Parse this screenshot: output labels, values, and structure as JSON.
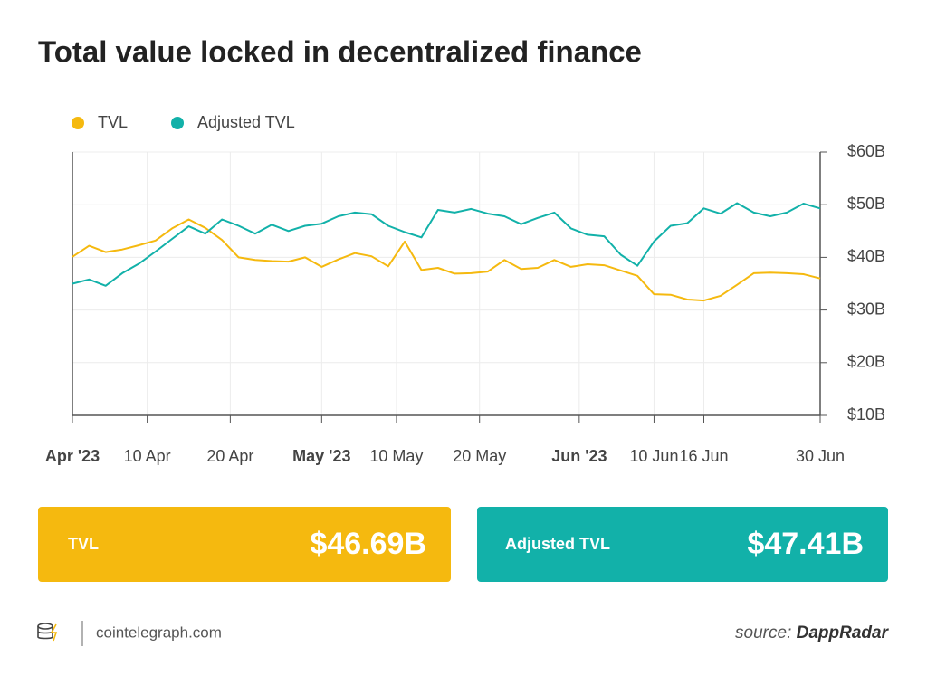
{
  "chart_data": {
    "type": "line",
    "title": "Total value locked in decentralized finance",
    "x": [
      "2023-04-01",
      "2023-04-03",
      "2023-04-05",
      "2023-04-07",
      "2023-04-09",
      "2023-04-11",
      "2023-04-13",
      "2023-04-15",
      "2023-04-17",
      "2023-04-19",
      "2023-04-21",
      "2023-04-23",
      "2023-04-25",
      "2023-04-27",
      "2023-04-29",
      "2023-05-01",
      "2023-05-03",
      "2023-05-05",
      "2023-05-07",
      "2023-05-09",
      "2023-05-11",
      "2023-05-13",
      "2023-05-15",
      "2023-05-17",
      "2023-05-19",
      "2023-05-21",
      "2023-05-23",
      "2023-05-25",
      "2023-05-27",
      "2023-05-29",
      "2023-05-31",
      "2023-06-02",
      "2023-06-04",
      "2023-06-06",
      "2023-06-08",
      "2023-06-10",
      "2023-06-12",
      "2023-06-14",
      "2023-06-16",
      "2023-06-18",
      "2023-06-20",
      "2023-06-22",
      "2023-06-24",
      "2023-06-26",
      "2023-06-28",
      "2023-06-30"
    ],
    "series": [
      {
        "name": "TVL",
        "color": "#f5b90f",
        "values": [
          40.1,
          42.2,
          41,
          41.5,
          42.3,
          43.2,
          45.5,
          47.2,
          45.6,
          43.3,
          40,
          39.5,
          39.3,
          39.2,
          40,
          38.2,
          39.6,
          40.8,
          40.2,
          38.3,
          43,
          37.6,
          38,
          36.9,
          37,
          37.3,
          39.5,
          37.8,
          38,
          39.5,
          38.2,
          38.7,
          38.5,
          37.5,
          36.5,
          33,
          32.9,
          32,
          31.8,
          32.7,
          34.8,
          37,
          37.1,
          37,
          36.8,
          36
        ]
      },
      {
        "name": "Adjusted TVL",
        "color": "#12b1a9",
        "values": [
          35,
          35.8,
          34.6,
          37,
          38.8,
          41.1,
          43.5,
          45.9,
          44.5,
          47.2,
          46,
          44.5,
          46.2,
          45,
          46,
          46.4,
          47.8,
          48.5,
          48.2,
          46,
          44.8,
          43.8,
          49,
          48.5,
          49.2,
          48.3,
          47.8,
          46.3,
          47.5,
          48.5,
          45.5,
          44.3,
          44,
          40.5,
          38.4,
          43,
          46,
          46.5,
          49.3,
          48.3,
          50.3,
          48.5,
          47.8,
          48.5,
          50.2,
          49.3
        ]
      }
    ],
    "xlim": [
      "2023-04-01",
      "2023-06-30"
    ],
    "xticks": [
      {
        "value": "2023-04-01",
        "label": "Apr '23"
      },
      {
        "value": "2023-04-10",
        "label": "10 Apr"
      },
      {
        "value": "2023-04-20",
        "label": "20 Apr"
      },
      {
        "value": "2023-05-01",
        "label": "May '23"
      },
      {
        "value": "2023-05-10",
        "label": "10 May"
      },
      {
        "value": "2023-05-20",
        "label": "20 May"
      },
      {
        "value": "2023-06-01",
        "label": "Jun '23"
      },
      {
        "value": "2023-06-10",
        "label": "10 Jun"
      },
      {
        "value": "2023-06-16",
        "label": "16 Jun"
      },
      {
        "value": "2023-06-30",
        "label": "30 Jun"
      }
    ],
    "ylim": [
      10,
      60
    ],
    "yticks": [
      {
        "value": 10,
        "label": "$10B"
      },
      {
        "value": 20,
        "label": "$20B"
      },
      {
        "value": 30,
        "label": "$30B"
      },
      {
        "value": 40,
        "label": "$40B"
      },
      {
        "value": 50,
        "label": "$50B"
      },
      {
        "value": 60,
        "label": "$60B"
      }
    ],
    "grid": true,
    "legend": "top-left"
  },
  "summary_cards": [
    {
      "label": "TVL",
      "value": "$46.69B"
    },
    {
      "label": "Adjusted TVL",
      "value": "$47.41B"
    }
  ],
  "footer": {
    "site": "cointelegraph.com",
    "source_prefix": "source:",
    "source": "DappRadar"
  }
}
